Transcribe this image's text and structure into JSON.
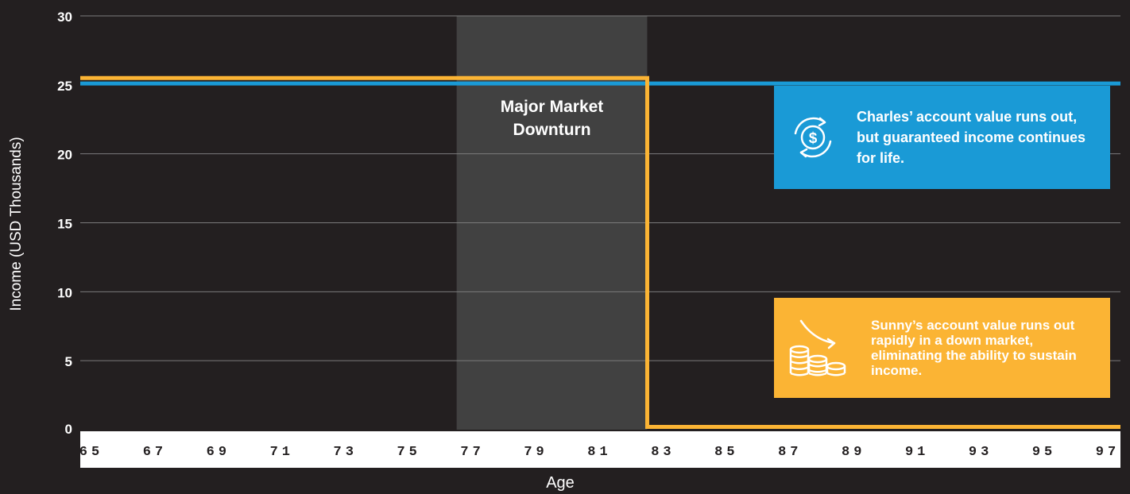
{
  "chart_data": {
    "type": "line",
    "xlabel": "Age",
    "ylabel": "Income (USD Thousands)",
    "xlim": [
      65,
      97
    ],
    "ylim": [
      0,
      30
    ],
    "x_ticks": [
      "65",
      "67",
      "69",
      "71",
      "73",
      "75",
      "77",
      "79",
      "81",
      "83",
      "85",
      "87",
      "89",
      "91",
      "93",
      "95",
      "97"
    ],
    "y_ticks": [
      "0",
      "5",
      "10",
      "15",
      "20",
      "25",
      "30"
    ],
    "grid": true,
    "shaded_region": {
      "label": "Major Market Downturn",
      "x_start": 76.5,
      "x_end": 82.5
    },
    "series": [
      {
        "color": "#1a9ad6",
        "points": [
          [
            65,
            25.1
          ],
          [
            97,
            25.1
          ]
        ]
      },
      {
        "color": "#fbb434",
        "points": [
          [
            65,
            25.5
          ],
          [
            82.5,
            25.5
          ],
          [
            82.5,
            0.2
          ],
          [
            97,
            0.2
          ]
        ]
      }
    ],
    "annotations": [
      {
        "text": "Charles’ account value runs out, but guaranteed income continues for life.",
        "color": "#1a9ad6",
        "icon": "dollar-cycle-icon"
      },
      {
        "text": "Sunny’s account value runs out rapidly in a down market, eliminating the ability to sustain income.",
        "color": "#fbb434",
        "icon": "coin-stacks-declining-icon"
      }
    ]
  }
}
